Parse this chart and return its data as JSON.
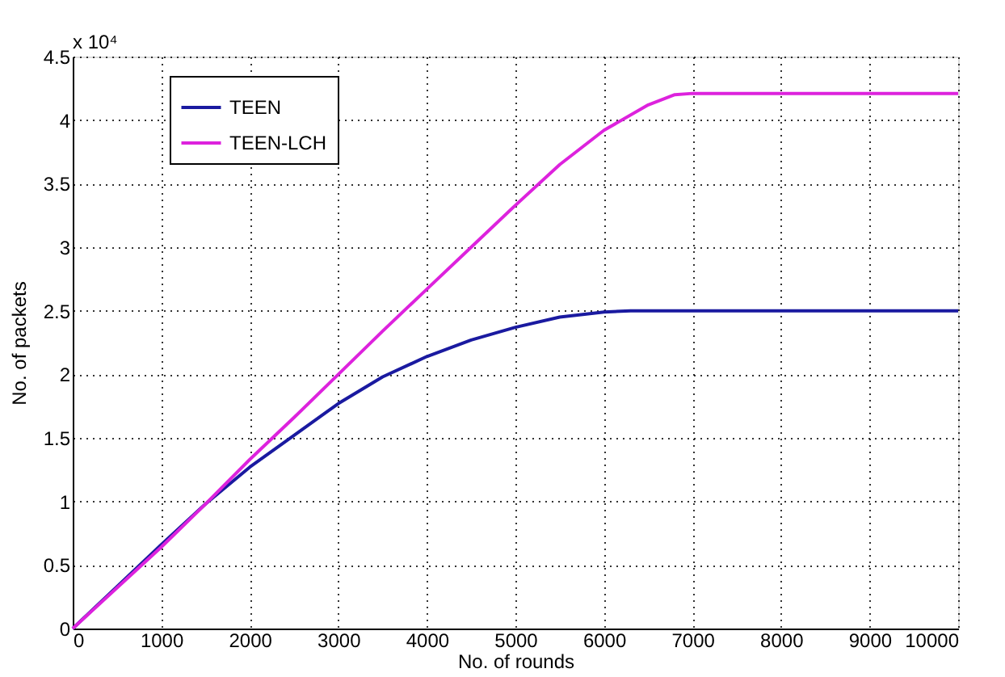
{
  "chart_data": {
    "type": "line",
    "xlabel": "No. of rounds",
    "ylabel": "No. of packets",
    "annotations": [
      "x 10⁴"
    ],
    "series": [
      {
        "name": "TEEN",
        "color": "#1a1aa0",
        "x": [
          0,
          500,
          1000,
          1500,
          2000,
          2500,
          3000,
          3500,
          4000,
          4500,
          5000,
          5500,
          6000,
          6300,
          10000
        ],
        "values": [
          0,
          0.33,
          0.66,
          0.98,
          1.27,
          1.52,
          1.77,
          1.98,
          2.14,
          2.27,
          2.37,
          2.45,
          2.49,
          2.5,
          2.5
        ]
      },
      {
        "name": "TEEN-LCH",
        "color": "#dd22dd",
        "x": [
          0,
          1000,
          1500,
          2000,
          2500,
          3000,
          3500,
          4000,
          4500,
          5000,
          5500,
          6000,
          6500,
          6800,
          7000,
          10000
        ],
        "values": [
          0,
          0.64,
          0.98,
          1.33,
          1.66,
          2.0,
          2.34,
          2.67,
          3.0,
          3.33,
          3.65,
          3.92,
          4.12,
          4.2,
          4.21,
          4.21
        ]
      }
    ],
    "xlim": [
      0,
      10000
    ],
    "xticks": [
      0,
      1000,
      2000,
      3000,
      4000,
      5000,
      6000,
      7000,
      8000,
      9000,
      10000
    ],
    "ylim": [
      0,
      4.5
    ],
    "yticks": [
      0,
      0.5,
      1,
      1.5,
      2,
      2.5,
      3,
      3.5,
      4,
      4.5
    ],
    "grid": true,
    "line_style": "solid",
    "marker": "none",
    "legend": "top left"
  }
}
